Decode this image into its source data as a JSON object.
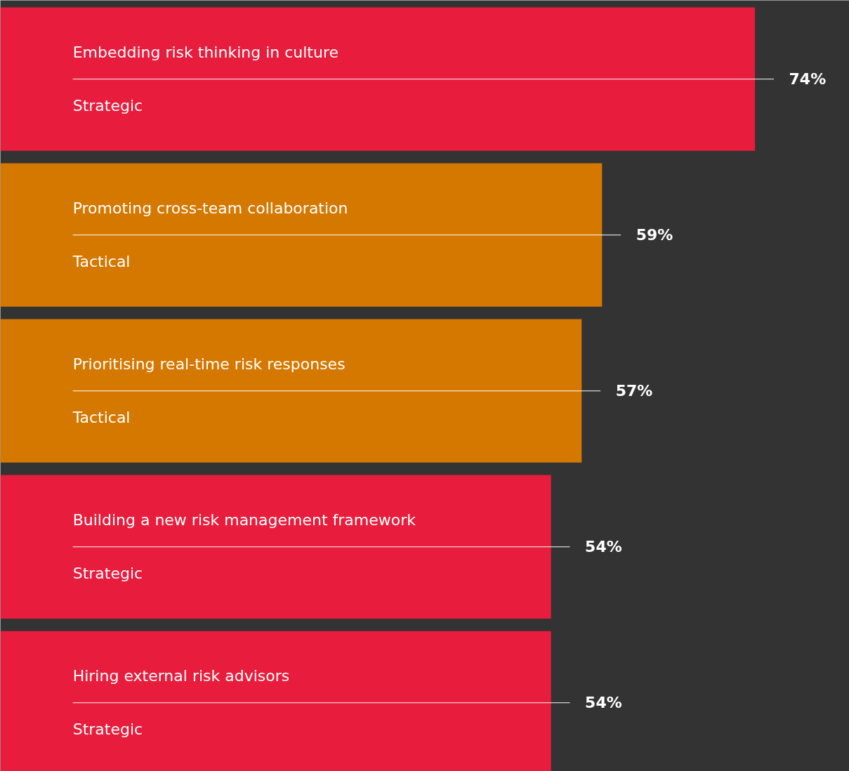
{
  "chart_data": {
    "type": "bar",
    "orientation": "horizontal",
    "categories": [
      "Embedding risk thinking in culture",
      "Promoting cross-team collaboration",
      "Prioritising real-time risk responses",
      "Building a new risk management framework",
      "Hiring external risk advisors"
    ],
    "values": [
      74,
      59,
      57,
      54,
      54
    ],
    "colors": [
      "#e81c3c",
      "#d57800",
      "#d57800",
      "#e81c3c",
      "#e81c3c"
    ],
    "value_labels": [
      "74%",
      "59%",
      "57%",
      "54%",
      "54%"
    ],
    "annotations": [
      "Strategic",
      "Tactical",
      "Tactical",
      "Strategic",
      "Strategic"
    ],
    "tick_labels": false,
    "grid": false
  }
}
